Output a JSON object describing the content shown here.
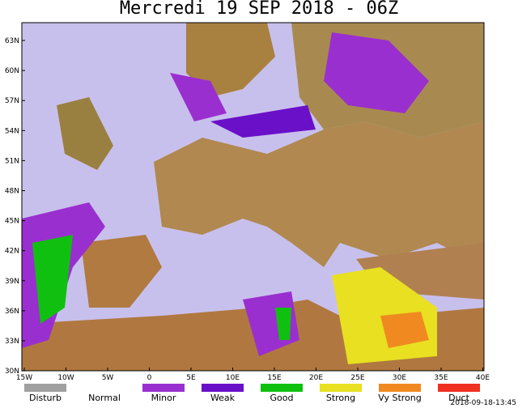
{
  "header": {
    "title": "Mercredi 19 SEP 2018 - 06Z"
  },
  "map": {
    "lat_labels": [
      "63N",
      "60N",
      "57N",
      "54N",
      "51N",
      "48N",
      "45N",
      "42N",
      "39N",
      "36N",
      "33N",
      "30N"
    ],
    "lon_labels": [
      "15W",
      "10W",
      "5W",
      "0",
      "5E",
      "10E",
      "15E",
      "20E",
      "25E",
      "30E",
      "35E",
      "40E"
    ]
  },
  "legend": {
    "items": [
      {
        "label": "Disturb",
        "color": "#a0a0a0"
      },
      {
        "label": "Normal",
        "color": "#ffffff"
      },
      {
        "label": "Minor",
        "color": "#9a2fcf"
      },
      {
        "label": "Weak",
        "color": "#6a10c8"
      },
      {
        "label": "Good",
        "color": "#10c010"
      },
      {
        "label": "Strong",
        "color": "#e8e020"
      },
      {
        "label": "Vy Strong",
        "color": "#f08a20"
      },
      {
        "label": "Duct",
        "color": "#f03020"
      }
    ]
  },
  "footer": {
    "timestamp": "2018-09-18-13:45"
  }
}
